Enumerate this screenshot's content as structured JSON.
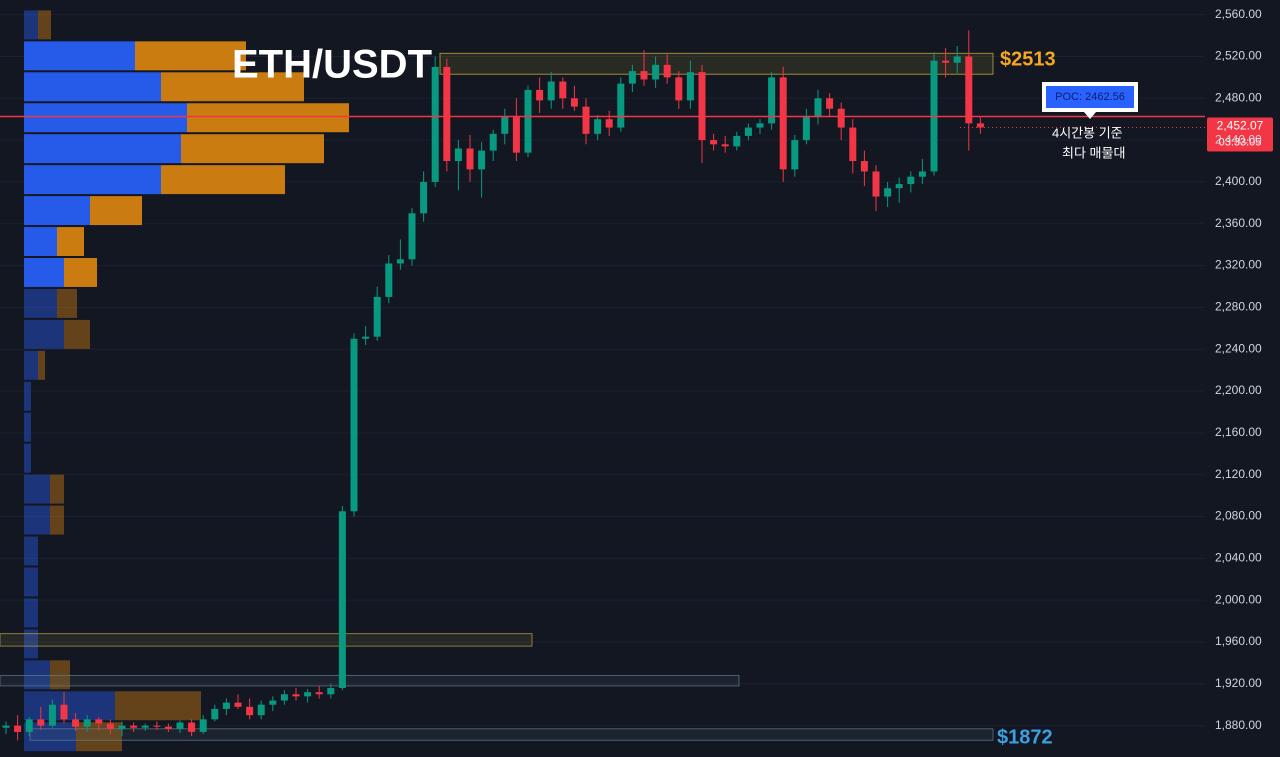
{
  "chart_data": {
    "type": "candlestick",
    "title": "ETH/USDT",
    "ylim": [
      1850,
      2574
    ],
    "yticks": [
      {
        "value": 2560,
        "label": "2,560.00"
      },
      {
        "value": 2520,
        "label": "2,520.00"
      },
      {
        "value": 2480,
        "label": "2,480.00"
      },
      {
        "value": 2440,
        "label": "2,440.00"
      },
      {
        "value": 2400,
        "label": "2,400.00"
      },
      {
        "value": 2360,
        "label": "2,360.00"
      },
      {
        "value": 2320,
        "label": "2,320.00"
      },
      {
        "value": 2280,
        "label": "2,280.00"
      },
      {
        "value": 2240,
        "label": "2,240.00"
      },
      {
        "value": 2200,
        "label": "2,200.00"
      },
      {
        "value": 2160,
        "label": "2,160.00"
      },
      {
        "value": 2120,
        "label": "2,120.00"
      },
      {
        "value": 2080,
        "label": "2,080.00"
      },
      {
        "value": 2040,
        "label": "2,040.00"
      },
      {
        "value": 2000,
        "label": "2,000.00"
      },
      {
        "value": 1960,
        "label": "1,960.00"
      },
      {
        "value": 1920,
        "label": "1,920.00"
      },
      {
        "value": 1880,
        "label": "1,880.00"
      }
    ],
    "up_color": "#089981",
    "down_color": "#f23645",
    "open": [
      1878,
      1880,
      1874,
      1886,
      1880,
      1900,
      1886,
      1879,
      1886,
      1882,
      1877,
      1880,
      1878,
      1880,
      1879,
      1877,
      1883,
      1874,
      1886,
      1896,
      1902,
      1898,
      1890,
      1900,
      1904,
      1910,
      1908,
      1912,
      1910,
      1916,
      2085,
      2250,
      2252,
      2290,
      2322,
      2326,
      2370,
      2400,
      2510,
      2420,
      2432,
      2412,
      2430,
      2446,
      2462,
      2428,
      2488,
      2478,
      2496,
      2480,
      2472,
      2446,
      2460,
      2452,
      2494,
      2506,
      2498,
      2512,
      2500,
      2478,
      2505,
      2440,
      2436,
      2434,
      2444,
      2452,
      2456,
      2500,
      2412,
      2440,
      2462,
      2480,
      2470,
      2452,
      2420,
      2410,
      2386,
      2394,
      2398,
      2405,
      2410,
      2516,
      2514,
      2520,
      2456
    ],
    "high": [
      1884,
      1890,
      1888,
      1898,
      1905,
      1912,
      1892,
      1890,
      1888,
      1886,
      1884,
      1883,
      1882,
      1884,
      1882,
      1885,
      1886,
      1890,
      1900,
      1906,
      1910,
      1906,
      1904,
      1908,
      1914,
      1916,
      1915,
      1918,
      1920,
      2090,
      2255,
      2262,
      2300,
      2330,
      2345,
      2375,
      2410,
      2520,
      2518,
      2440,
      2445,
      2438,
      2450,
      2470,
      2480,
      2492,
      2500,
      2505,
      2500,
      2492,
      2480,
      2464,
      2468,
      2500,
      2512,
      2526,
      2520,
      2522,
      2506,
      2516,
      2512,
      2446,
      2444,
      2448,
      2456,
      2460,
      2505,
      2510,
      2445,
      2470,
      2488,
      2485,
      2476,
      2460,
      2430,
      2416,
      2400,
      2404,
      2410,
      2422,
      2524,
      2528,
      2530,
      2545,
      2462
    ],
    "low": [
      1872,
      1866,
      1870,
      1876,
      1878,
      1882,
      1875,
      1874,
      1876,
      1872,
      1870,
      1874,
      1875,
      1876,
      1874,
      1873,
      1870,
      1872,
      1884,
      1890,
      1896,
      1886,
      1886,
      1894,
      1900,
      1904,
      1902,
      1906,
      1906,
      1914,
      2080,
      2244,
      2248,
      2284,
      2316,
      2320,
      2362,
      2395,
      2410,
      2392,
      2400,
      2385,
      2420,
      2436,
      2420,
      2424,
      2466,
      2470,
      2470,
      2468,
      2436,
      2440,
      2444,
      2448,
      2486,
      2492,
      2490,
      2494,
      2470,
      2470,
      2418,
      2430,
      2428,
      2430,
      2440,
      2446,
      2450,
      2400,
      2405,
      2436,
      2455,
      2462,
      2440,
      2408,
      2396,
      2372,
      2376,
      2380,
      2390,
      2398,
      2406,
      2500,
      2504,
      2430,
      2446
    ],
    "close": [
      1880,
      1874,
      1886,
      1880,
      1900,
      1886,
      1879,
      1886,
      1882,
      1877,
      1880,
      1878,
      1880,
      1879,
      1877,
      1883,
      1874,
      1886,
      1896,
      1902,
      1898,
      1890,
      1900,
      1904,
      1910,
      1908,
      1912,
      1910,
      1916,
      2085,
      2250,
      2252,
      2290,
      2322,
      2326,
      2370,
      2400,
      2510,
      2420,
      2432,
      2412,
      2430,
      2446,
      2462,
      2428,
      2488,
      2478,
      2496,
      2480,
      2472,
      2446,
      2460,
      2452,
      2494,
      2506,
      2498,
      2512,
      2500,
      2478,
      2505,
      2440,
      2436,
      2434,
      2444,
      2452,
      2456,
      2500,
      2412,
      2440,
      2462,
      2480,
      2470,
      2452,
      2420,
      2410,
      2386,
      2394,
      2398,
      2405,
      2410,
      2516,
      2514,
      2520,
      2456,
      2452.07
    ],
    "last_price": {
      "value": 2452.07,
      "label": "2,452.07"
    },
    "countdown": "03:33:05",
    "poc": {
      "value": 2462.56,
      "label": "POC: 2462.56"
    },
    "profile": {
      "bins": [
        2565,
        2535.4,
        2505.8,
        2476.2,
        2446.6,
        2417,
        2387.4,
        2357.8,
        2328.2,
        2298.6,
        2269,
        2239.4,
        2209.8,
        2180.2,
        2150.6,
        2121,
        2091.4,
        2061.8,
        2032.2,
        2002.6,
        1973,
        1943.4,
        1913.8,
        1884.2,
        1854.6
      ],
      "buy": [
        14,
        111,
        137,
        163,
        157,
        137,
        66,
        33,
        40,
        33,
        40,
        14,
        7,
        7,
        7,
        26,
        26,
        14,
        14,
        14,
        14,
        26,
        91,
        52
      ],
      "sell": [
        13,
        111,
        143,
        162,
        143,
        124,
        52,
        27,
        33,
        20,
        26,
        7,
        0,
        0,
        0,
        14,
        14,
        0,
        0,
        0,
        0,
        20,
        86,
        46
      ],
      "buy_color": "#2962ff",
      "sell_color": "#e0870f",
      "value_area": [
        2298.6,
        2535.4
      ]
    },
    "zones": [
      {
        "low": 2503,
        "high": 2523,
        "color": "#d4b93a"
      },
      {
        "low": 1956,
        "high": 1968,
        "color": "#b8a24a"
      },
      {
        "low": 1918,
        "high": 1928,
        "color": "#5f7f8f"
      },
      {
        "low": 1866,
        "high": 1877,
        "color": "#5f7f8f"
      }
    ],
    "annotations": {
      "high_level": "$2513",
      "low_level": "$1872",
      "note_line1": "4시간봉 기준",
      "note_line2": "최다 매물대"
    }
  }
}
